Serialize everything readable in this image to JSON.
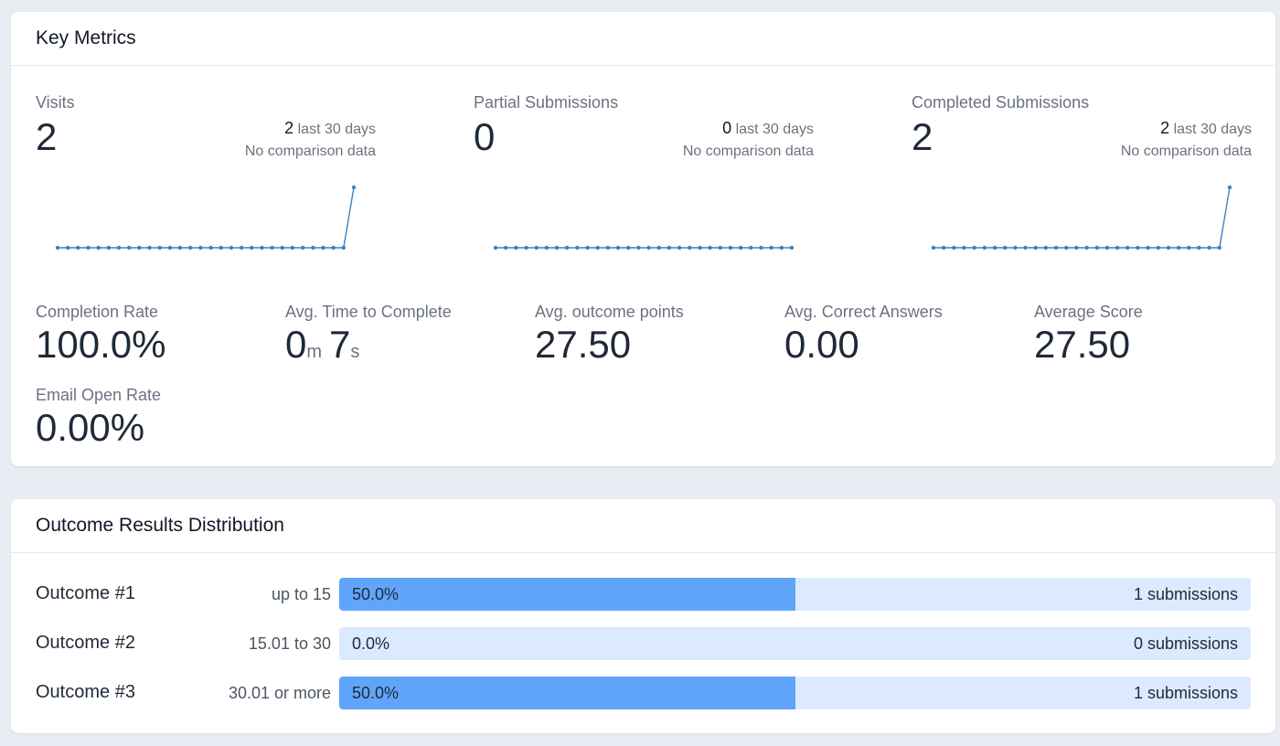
{
  "key_metrics": {
    "title": "Key Metrics",
    "top": [
      {
        "label": "Visits",
        "value": "2",
        "recent_count": "2",
        "recent_label": "last 30 days",
        "comparison": "No comparison data",
        "series": [
          0,
          0,
          0,
          0,
          0,
          0,
          0,
          0,
          0,
          0,
          0,
          0,
          0,
          0,
          0,
          0,
          0,
          0,
          0,
          0,
          0,
          0,
          0,
          0,
          0,
          0,
          0,
          0,
          0,
          2
        ]
      },
      {
        "label": "Partial Submissions",
        "value": "0",
        "recent_count": "0",
        "recent_label": "last 30 days",
        "comparison": "No comparison data",
        "series": [
          0,
          0,
          0,
          0,
          0,
          0,
          0,
          0,
          0,
          0,
          0,
          0,
          0,
          0,
          0,
          0,
          0,
          0,
          0,
          0,
          0,
          0,
          0,
          0,
          0,
          0,
          0,
          0,
          0,
          0
        ]
      },
      {
        "label": "Completed Submissions",
        "value": "2",
        "recent_count": "2",
        "recent_label": "last 30 days",
        "comparison": "No comparison data",
        "series": [
          0,
          0,
          0,
          0,
          0,
          0,
          0,
          0,
          0,
          0,
          0,
          0,
          0,
          0,
          0,
          0,
          0,
          0,
          0,
          0,
          0,
          0,
          0,
          0,
          0,
          0,
          0,
          0,
          0,
          2
        ]
      }
    ],
    "completion_rate": {
      "label": "Completion Rate",
      "value": "100.0%"
    },
    "avg_time": {
      "label": "Avg. Time to Complete",
      "minutes": "0",
      "minutes_unit": "m",
      "seconds": "7",
      "seconds_unit": "s"
    },
    "avg_outcome_points": {
      "label": "Avg. outcome points",
      "value": "27.50"
    },
    "avg_correct": {
      "label": "Avg. Correct Answers",
      "value": "0.00"
    },
    "average_score": {
      "label": "Average Score",
      "value": "27.50"
    },
    "email_open_rate": {
      "label": "Email Open Rate",
      "value": "0.00%"
    }
  },
  "outcomes": {
    "title": "Outcome Results Distribution",
    "rows": [
      {
        "name": "Outcome #1",
        "range": "up to 15",
        "percent": 50.0,
        "percent_label": "50.0%",
        "count_label": "1 submissions"
      },
      {
        "name": "Outcome #2",
        "range": "15.01 to 30",
        "percent": 0.0,
        "percent_label": "0.0%",
        "count_label": "0 submissions"
      },
      {
        "name": "Outcome #3",
        "range": "30.01 or more",
        "percent": 50.0,
        "percent_label": "50.0%",
        "count_label": "1 submissions"
      }
    ]
  },
  "colors": {
    "sparkline": "#3b82c4",
    "bar_fill": "#60a5fa",
    "bar_track": "#dbeafe"
  }
}
